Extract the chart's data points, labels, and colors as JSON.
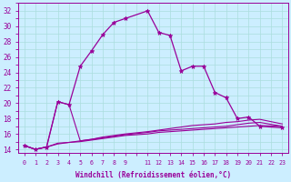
{
  "xlabel": "Windchill (Refroidissement éolien,°C)",
  "background_color": "#cceeff",
  "grid_color": "#aadddd",
  "line_color": "#990099",
  "xlim": [
    -0.5,
    23.5
  ],
  "ylim": [
    13.5,
    33.0
  ],
  "yticks": [
    14,
    16,
    18,
    20,
    22,
    24,
    26,
    28,
    30,
    32
  ],
  "series1_x": [
    0,
    1,
    2,
    3,
    4,
    5,
    6,
    7,
    8,
    9,
    11,
    12,
    13,
    14,
    15,
    16,
    17,
    18,
    19,
    20,
    21,
    23
  ],
  "series1_y": [
    14.5,
    14.0,
    14.3,
    20.2,
    19.8,
    24.8,
    26.8,
    28.9,
    30.5,
    31.0,
    32.0,
    29.2,
    28.8,
    24.2,
    24.8,
    24.8,
    21.4,
    20.7,
    18.0,
    18.2,
    17.0,
    16.8
  ],
  "series2_x": [
    0,
    1,
    2,
    3,
    4,
    5,
    6,
    7,
    8,
    9,
    11,
    12,
    13,
    14,
    15,
    16,
    17,
    18,
    19,
    20,
    21,
    23
  ],
  "series2_y": [
    14.5,
    14.0,
    14.3,
    20.2,
    19.8,
    15.1,
    15.3,
    15.5,
    15.7,
    15.9,
    16.2,
    16.4,
    16.5,
    16.6,
    16.7,
    16.8,
    16.9,
    17.0,
    17.2,
    17.4,
    17.5,
    17.0
  ],
  "series3_x": [
    0,
    1,
    2,
    3,
    4,
    5,
    6,
    7,
    8,
    9,
    11,
    12,
    13,
    14,
    15,
    16,
    17,
    18,
    19,
    20,
    21,
    23
  ],
  "series3_y": [
    14.5,
    14.0,
    14.3,
    14.8,
    14.9,
    15.0,
    15.2,
    15.4,
    15.6,
    15.8,
    16.0,
    16.2,
    16.3,
    16.4,
    16.5,
    16.6,
    16.7,
    16.8,
    16.9,
    17.0,
    17.1,
    17.0
  ],
  "series4_x": [
    0,
    1,
    2,
    3,
    4,
    5,
    6,
    7,
    8,
    9,
    11,
    12,
    13,
    14,
    15,
    16,
    17,
    18,
    19,
    20,
    21,
    23
  ],
  "series4_y": [
    14.5,
    14.0,
    14.3,
    14.7,
    14.9,
    15.1,
    15.3,
    15.6,
    15.8,
    16.0,
    16.3,
    16.5,
    16.7,
    16.9,
    17.1,
    17.2,
    17.3,
    17.5,
    17.6,
    17.8,
    17.9,
    17.3
  ]
}
